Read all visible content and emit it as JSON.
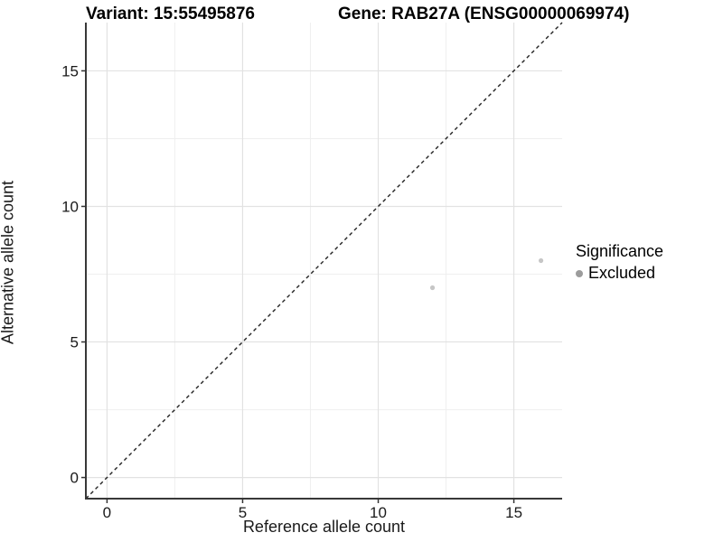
{
  "header": {
    "variant_title": "Variant: 15:55495876",
    "gene_title": "Gene: RAB27A (ENSG00000069974)"
  },
  "chart_data": {
    "type": "scatter",
    "title_left": "Variant: 15:55495876",
    "title_right": "Gene: RAB27A (ENSG00000069974)",
    "xlabel": "Reference allele count",
    "ylabel": "Alternative allele count",
    "xlim": [
      -0.78,
      16.78
    ],
    "ylim": [
      -0.78,
      16.78
    ],
    "x_ticks": [
      0,
      5,
      10,
      15
    ],
    "y_ticks": [
      0,
      5,
      10,
      15
    ],
    "x_minor_ticks": [
      2.5,
      7.5,
      12.5
    ],
    "y_minor_ticks": [
      2.5,
      7.5,
      12.5
    ],
    "grid": true,
    "legend_position": "right",
    "reference_line": {
      "type": "identity",
      "style": "dashed",
      "color": "#222222"
    },
    "series": [
      {
        "name": "Excluded",
        "point_color": "#c6c6c6",
        "points": [
          {
            "x": 12,
            "y": 7
          },
          {
            "x": 16,
            "y": 8
          }
        ]
      }
    ],
    "legend": {
      "title": "Significance",
      "items": [
        {
          "label": "Excluded",
          "color": "#9c9c9c"
        }
      ]
    }
  },
  "colors": {
    "background": "#ffffff",
    "axis_line": "#383838",
    "tick_mark": "#333333",
    "tick_label": "#1a1a1a",
    "grid_major": "#e2e2e2",
    "grid_minor": "#efefef",
    "point_fill": "#c6c6c6",
    "legend_dot": "#9c9c9c",
    "dashed_line": "#222222"
  }
}
